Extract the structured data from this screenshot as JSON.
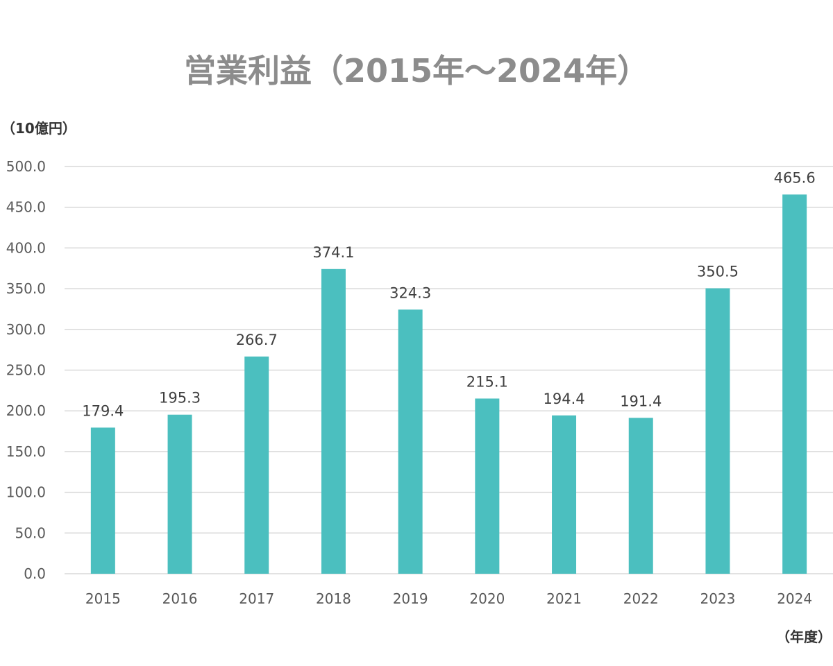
{
  "chart_data": {
    "type": "bar",
    "title": "営業利益（2015年〜2024年）",
    "ylabel": "（10億円）",
    "xlabel": "（年度）",
    "categories": [
      "2015",
      "2016",
      "2017",
      "2018",
      "2019",
      "2020",
      "2021",
      "2022",
      "2023",
      "2024"
    ],
    "values": [
      179.4,
      195.3,
      266.7,
      374.1,
      324.3,
      215.1,
      194.4,
      191.4,
      350.5,
      465.6
    ],
    "data_labels": [
      "179.4",
      "195.3",
      "266.7",
      "374.1",
      "324.3",
      "215.1",
      "194.4",
      "191.4",
      "350.5",
      "465.6"
    ],
    "ylim": [
      0,
      500
    ],
    "yticks": [
      "0.0",
      "50.0",
      "100.0",
      "150.0",
      "200.0",
      "250.0",
      "300.0",
      "350.0",
      "400.0",
      "450.0",
      "500.0"
    ],
    "grid": true,
    "legend": "none",
    "bar_color": "#4BBFBF",
    "grid_color": "#d9d9d9"
  }
}
